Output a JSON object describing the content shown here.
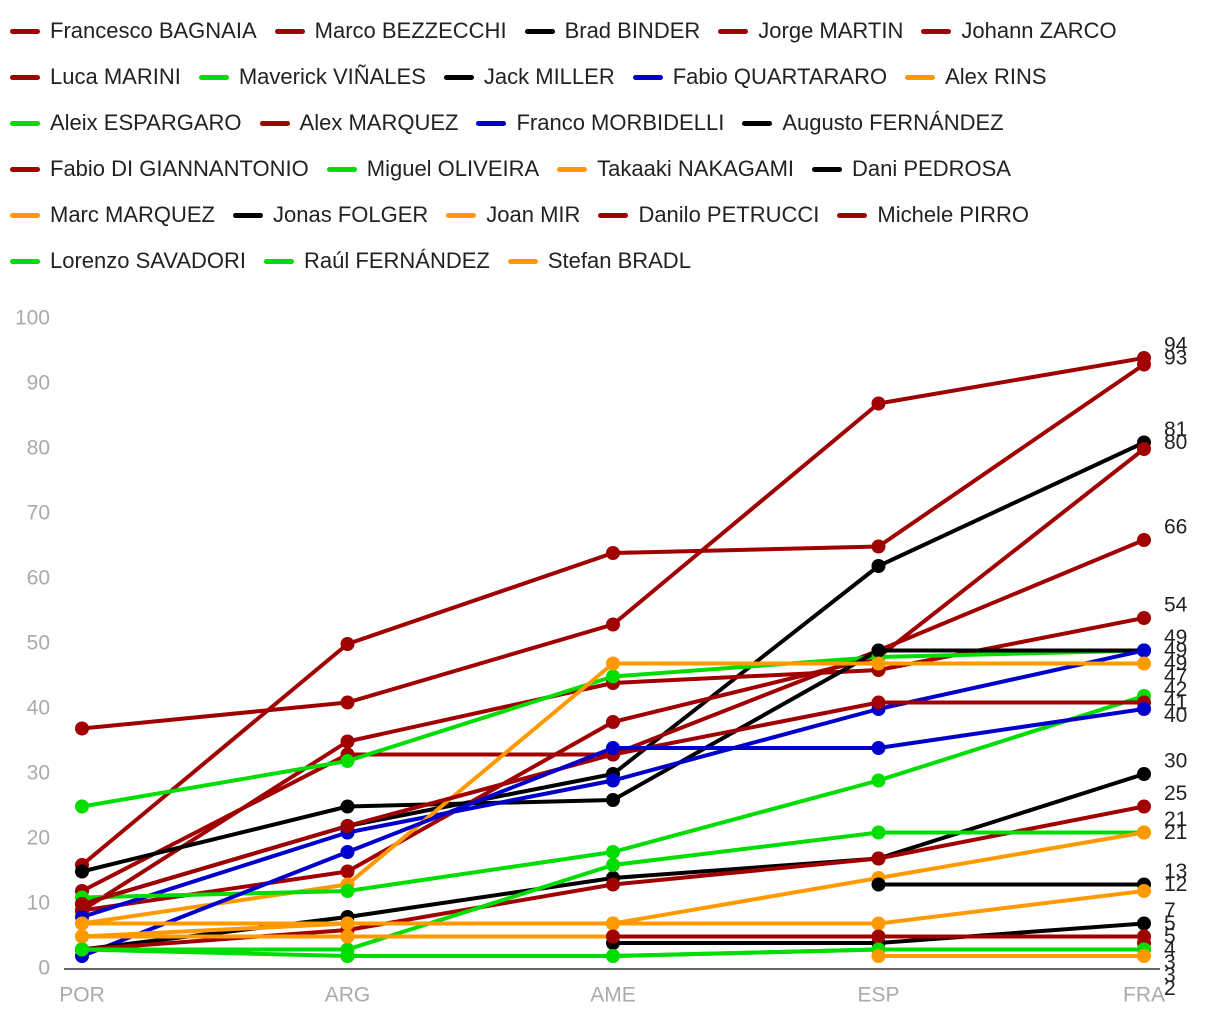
{
  "chart_data": {
    "type": "line",
    "categories": [
      "POR",
      "ARG",
      "AME",
      "ESP",
      "FRA"
    ],
    "ylim": [
      0,
      100
    ],
    "yticks": [
      0,
      10,
      20,
      30,
      40,
      50,
      60,
      70,
      80,
      90,
      100
    ],
    "series": [
      {
        "name": "Francesco BAGNAIA",
        "color": "#a00000",
        "values": [
          37,
          41,
          53,
          87,
          94
        ]
      },
      {
        "name": "Marco BEZZECCHI",
        "color": "#a00000",
        "values": [
          16,
          50,
          64,
          65,
          93
        ]
      },
      {
        "name": "Brad BINDER",
        "color": "#000000",
        "values": [
          10,
          22,
          30,
          62,
          81
        ]
      },
      {
        "name": "Jorge MARTIN",
        "color": "#a00000",
        "values": [
          9,
          15,
          38,
          48,
          80
        ]
      },
      {
        "name": "Johann ZARCO",
        "color": "#a00000",
        "values": [
          12,
          33,
          33,
          49,
          66
        ]
      },
      {
        "name": "Luca MARINI",
        "color": "#a00000",
        "values": [
          9,
          35,
          44,
          46,
          54
        ]
      },
      {
        "name": "Maverick VIÑALES",
        "color": "#00dd00",
        "values": [
          25,
          32,
          45,
          48,
          49
        ]
      },
      {
        "name": "Jack MILLER",
        "color": "#000000",
        "values": [
          15,
          25,
          26,
          49,
          49
        ]
      },
      {
        "name": "Fabio QUARTARARO",
        "color": "#0000cc",
        "values": [
          8,
          21,
          29,
          40,
          49
        ]
      },
      {
        "name": "Alex RINS",
        "color": "#ff9900",
        "values": [
          7,
          13,
          47,
          47,
          47
        ]
      },
      {
        "name": "Aleix ESPARGARO",
        "color": "#00dd00",
        "values": [
          11,
          12,
          18,
          29,
          42
        ]
      },
      {
        "name": "Alex MARQUEZ",
        "color": "#a00000",
        "values": [
          10,
          22,
          33,
          41,
          41
        ]
      },
      {
        "name": "Franco MORBIDELLI",
        "color": "#0000cc",
        "values": [
          2,
          18,
          34,
          34,
          40
        ]
      },
      {
        "name": "Augusto FERNÁNDEZ",
        "color": "#000000",
        "values": [
          3,
          8,
          14,
          17,
          30
        ]
      },
      {
        "name": "Fabio DI GIANNANTONIO",
        "color": "#a00000",
        "values": [
          3,
          6,
          13,
          17,
          25
        ]
      },
      {
        "name": "Miguel OLIVEIRA",
        "color": "#00dd00",
        "values": [
          3,
          3,
          16,
          21,
          21
        ]
      },
      {
        "name": "Takaaki NAKAGAMI",
        "color": "#ff9900",
        "values": [
          5,
          7,
          7,
          14,
          21
        ]
      },
      {
        "name": "Dani PEDROSA",
        "color": "#000000",
        "values": [
          null,
          null,
          null,
          13,
          13
        ]
      },
      {
        "name": "Marc MARQUEZ",
        "color": "#ff9900",
        "values": [
          7,
          7,
          7,
          7,
          12
        ]
      },
      {
        "name": "Jonas FOLGER",
        "color": "#000000",
        "values": [
          null,
          null,
          4,
          4,
          7
        ]
      },
      {
        "name": "Joan MIR",
        "color": "#ff9900",
        "values": [
          5,
          5,
          5,
          5,
          5
        ]
      },
      {
        "name": "Danilo PETRUCCI",
        "color": "#a00000",
        "values": [
          null,
          null,
          5,
          5,
          5
        ]
      },
      {
        "name": "Michele PIRRO",
        "color": "#a00000",
        "values": [
          null,
          null,
          null,
          null,
          4
        ]
      },
      {
        "name": "Lorenzo SAVADORI",
        "color": "#00dd00",
        "values": [
          3,
          2,
          2,
          3,
          3
        ]
      },
      {
        "name": "Raúl FERNÁNDEZ",
        "color": "#00dd00",
        "values": [
          null,
          2,
          2,
          3,
          3
        ]
      },
      {
        "name": "Stefan BRADL",
        "color": "#ff9900",
        "values": [
          null,
          null,
          null,
          2,
          2
        ]
      }
    ]
  }
}
